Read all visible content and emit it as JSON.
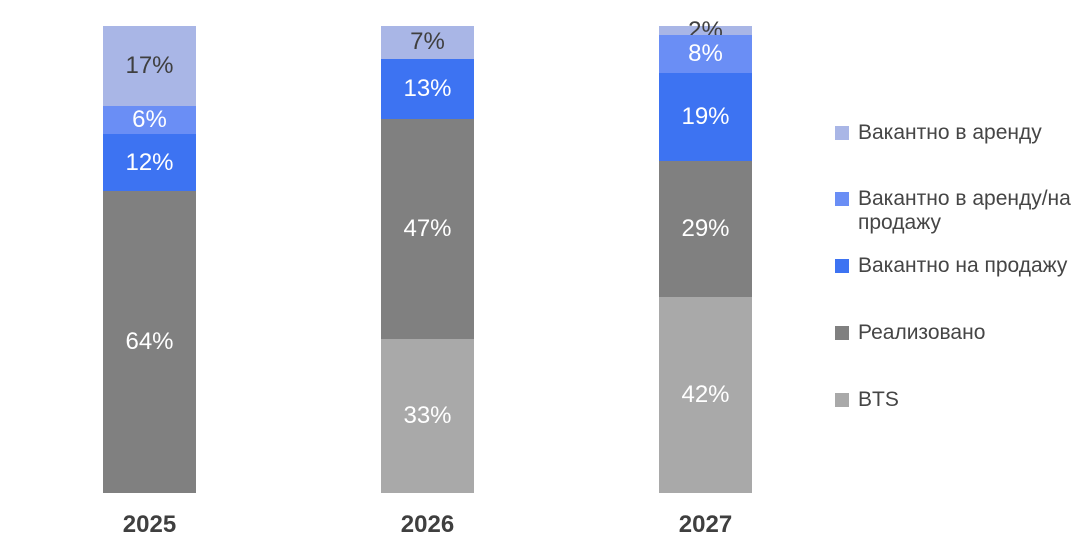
{
  "chart_data": {
    "type": "bar",
    "variant": "stacked-100-percent",
    "title": "",
    "categories": [
      "2025",
      "2026",
      "2027"
    ],
    "series": [
      {
        "name": "Вакантно в аренду",
        "color": "#A9B6E6",
        "label_color": "#3F3F3F",
        "values": [
          17,
          7,
          2
        ]
      },
      {
        "name": "Вакантно в аренду/на продажу",
        "color": "#6A8EF5",
        "label_color": "#FFFFFF",
        "values": [
          6,
          0,
          8
        ]
      },
      {
        "name": "Вакантно на продажу",
        "color": "#3D73F2",
        "label_color": "#FFFFFF",
        "values": [
          12,
          13,
          19
        ]
      },
      {
        "name": "Реализовано",
        "color": "#808080",
        "label_color": "#FFFFFF",
        "values": [
          64,
          47,
          29
        ]
      },
      {
        "name": "BTS",
        "color": "#A9A9A9",
        "label_color": "#FFFFFF",
        "values": [
          0,
          33,
          42
        ]
      }
    ],
    "value_suffix": "%",
    "data_labels": true,
    "legend_position": "right",
    "axes": {
      "y_axis_visible": false,
      "x_axis_line_visible": false,
      "grid": false,
      "ylim": [
        0,
        100
      ]
    }
  }
}
